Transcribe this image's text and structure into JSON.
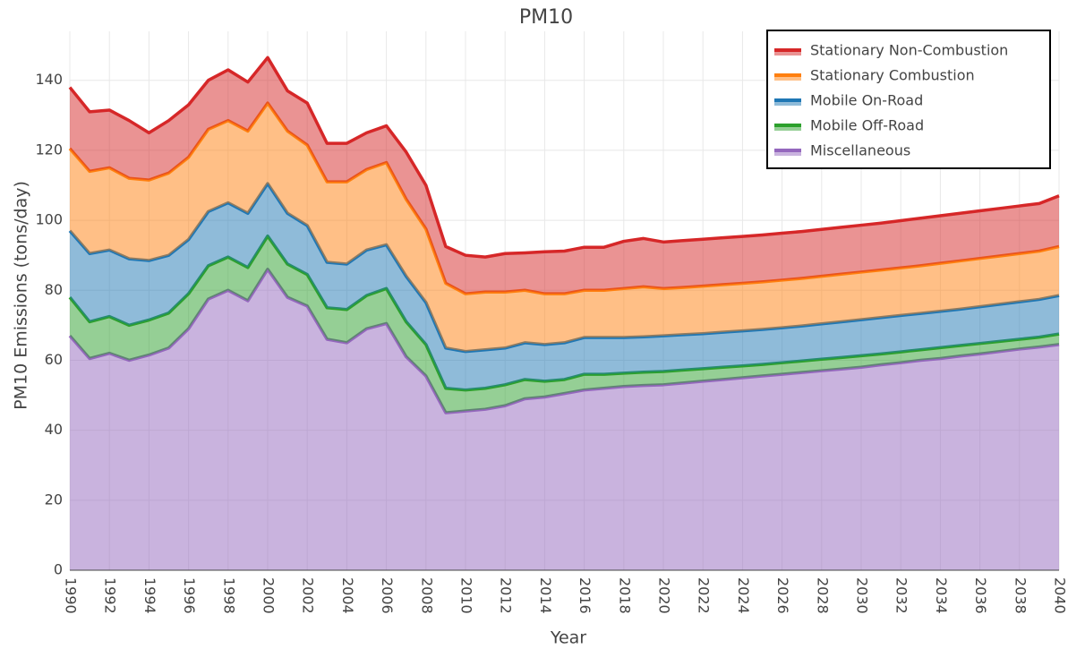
{
  "chart_data": {
    "type": "stacked-area",
    "title": "PM10",
    "x_label": "Year",
    "y_label": "PM10 Emissions (tons/day)",
    "x": [
      1990,
      1991,
      1992,
      1993,
      1994,
      1995,
      1996,
      1997,
      1998,
      1999,
      2000,
      2001,
      2002,
      2003,
      2004,
      2005,
      2006,
      2007,
      2008,
      2009,
      2010,
      2011,
      2012,
      2013,
      2014,
      2015,
      2016,
      2017,
      2018,
      2019,
      2020,
      2021,
      2022,
      2023,
      2024,
      2025,
      2026,
      2027,
      2028,
      2029,
      2030,
      2031,
      2032,
      2033,
      2034,
      2035,
      2036,
      2037,
      2038,
      2039,
      2040
    ],
    "xlim": [
      1990,
      2040
    ],
    "xticks": [
      1990,
      1992,
      1994,
      1996,
      1998,
      2000,
      2002,
      2004,
      2006,
      2008,
      2010,
      2012,
      2014,
      2016,
      2018,
      2020,
      2022,
      2024,
      2026,
      2028,
      2030,
      2032,
      2034,
      2036,
      2038,
      2040
    ],
    "ylim": [
      0,
      154
    ],
    "yticks": [
      0,
      20,
      40,
      60,
      80,
      100,
      120,
      140
    ],
    "grid": true,
    "legend": "top-right",
    "series": [
      {
        "name": "Miscellaneous",
        "color": "#9467bd",
        "values": [
          67,
          60.5,
          62,
          60,
          61.5,
          63.5,
          69,
          77.5,
          80,
          77,
          86,
          78,
          75.5,
          66,
          65,
          69,
          70.5,
          61,
          55.5,
          45,
          45.5,
          46,
          47,
          49,
          49.5,
          50.5,
          51.5,
          52,
          52.5,
          52.8,
          53,
          53.5,
          54,
          54.5,
          55,
          55.5,
          56,
          56.5,
          57,
          57.5,
          58,
          58.7,
          59.3,
          60,
          60.5,
          61.2,
          61.8,
          62.5,
          63.2,
          63.8,
          64.5
        ]
      },
      {
        "name": "Mobile Off-Road",
        "color": "#2ca02c",
        "values": [
          11,
          10.5,
          10.5,
          10,
          10,
          10,
          10,
          9.5,
          9.5,
          9.5,
          9.5,
          9.5,
          9,
          9,
          9.5,
          9.5,
          10,
          10,
          9,
          7,
          6,
          6,
          6,
          5.5,
          4.5,
          4,
          4.5,
          4,
          3.8,
          3.8,
          3.8,
          3.7,
          3.6,
          3.5,
          3.4,
          3.3,
          3.3,
          3.3,
          3.3,
          3.3,
          3.3,
          3.1,
          3.1,
          3,
          3.1,
          3,
          3,
          2.9,
          2.8,
          2.8,
          3
        ]
      },
      {
        "name": "Mobile On-Road",
        "color": "#1f77b4",
        "values": [
          19,
          19.5,
          19,
          19,
          17,
          16.5,
          15.5,
          15.5,
          15.5,
          15.5,
          15,
          14.5,
          14,
          13,
          13,
          13,
          12.5,
          13,
          12,
          11.5,
          11,
          11,
          10.5,
          10.5,
          10.5,
          10.5,
          10.5,
          10.5,
          10.2,
          10.1,
          10.2,
          10.1,
          10,
          10,
          10,
          10,
          10,
          10,
          10.1,
          10.2,
          10.3,
          10.4,
          10.4,
          10.4,
          10.4,
          10.4,
          10.5,
          10.6,
          10.7,
          10.8,
          11
        ]
      },
      {
        "name": "Stationary Combustion",
        "color": "#ff7f0e",
        "values": [
          23.5,
          23.5,
          23.5,
          23,
          23,
          23.5,
          23.5,
          23.5,
          23.5,
          23.5,
          23,
          23.5,
          23,
          23,
          23.5,
          23,
          23.5,
          22,
          21,
          18.5,
          16.5,
          16.5,
          16,
          15,
          14.5,
          14,
          13.5,
          13.5,
          14,
          14.3,
          13.5,
          13.5,
          13.6,
          13.6,
          13.6,
          13.6,
          13.6,
          13.6,
          13.6,
          13.6,
          13.6,
          13.6,
          13.6,
          13.6,
          13.7,
          13.8,
          13.8,
          13.8,
          13.8,
          13.8,
          14
        ]
      },
      {
        "name": "Stationary Non-Combustion",
        "color": "#d62728",
        "values": [
          17.5,
          17,
          16.5,
          16.5,
          13.5,
          15,
          15,
          14,
          14.5,
          14,
          13,
          11.5,
          12,
          11,
          11,
          10.5,
          10.5,
          13.5,
          12.5,
          10.5,
          11,
          10,
          11,
          10.7,
          12,
          12.2,
          12.3,
          12.3,
          13.5,
          13.8,
          13.3,
          13.4,
          13.4,
          13.4,
          13.4,
          13.4,
          13.4,
          13.4,
          13.4,
          13.4,
          13.4,
          13.4,
          13.5,
          13.6,
          13.6,
          13.6,
          13.6,
          13.6,
          13.6,
          13.6,
          14.5
        ]
      }
    ]
  }
}
